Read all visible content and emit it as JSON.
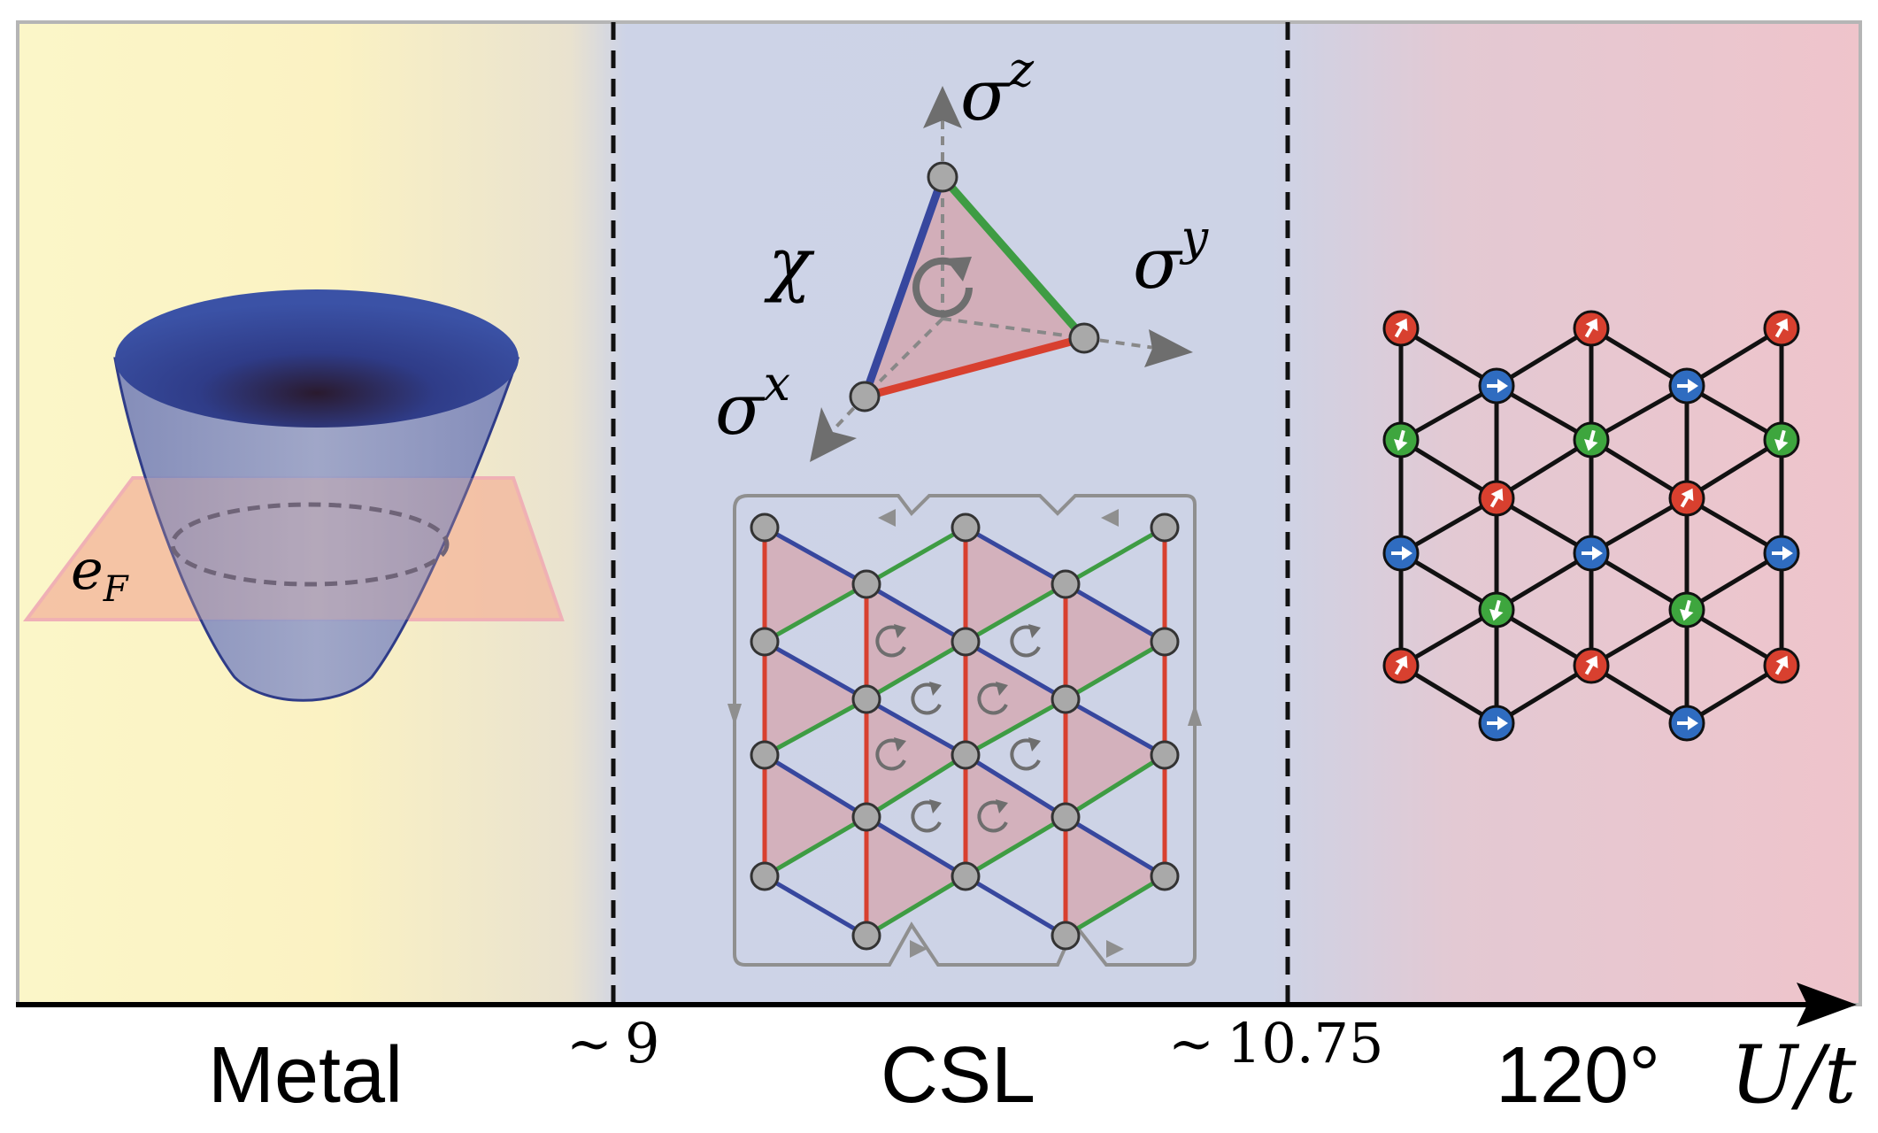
{
  "phases": [
    {
      "name": "Metal",
      "color": "#fbf3c4"
    },
    {
      "name": "CSL",
      "color": "#cdd3e6"
    },
    {
      "name": "120°",
      "color": "#efc6cc"
    }
  ],
  "boundaries": [
    {
      "label": "9",
      "prefix": "~"
    },
    {
      "label": "10.75",
      "prefix": "~"
    }
  ],
  "axis": {
    "label_num": "U",
    "label_slash": "/",
    "label_den": "t"
  },
  "metal": {
    "fermi_label_base": "e",
    "fermi_label_sub": "F",
    "band_color": "#3a4ea0",
    "plane_color": "#f2b49a"
  },
  "csl": {
    "spin_labels": {
      "z_base": "σ",
      "z_sup": "z",
      "y_base": "σ",
      "y_sup": "y",
      "x_base": "σ",
      "x_sup": "x"
    },
    "chirality_label": "χ",
    "bond_colors": {
      "x": "#d8402f",
      "y": "#3e9c43",
      "z": "#37479e"
    },
    "plaquette_color": "#d3aab4",
    "site_color": "#a9a9a9"
  },
  "order120": {
    "colors": {
      "a": "#d8402f",
      "b": "#2f6cc0",
      "c": "#3ea63e"
    }
  }
}
